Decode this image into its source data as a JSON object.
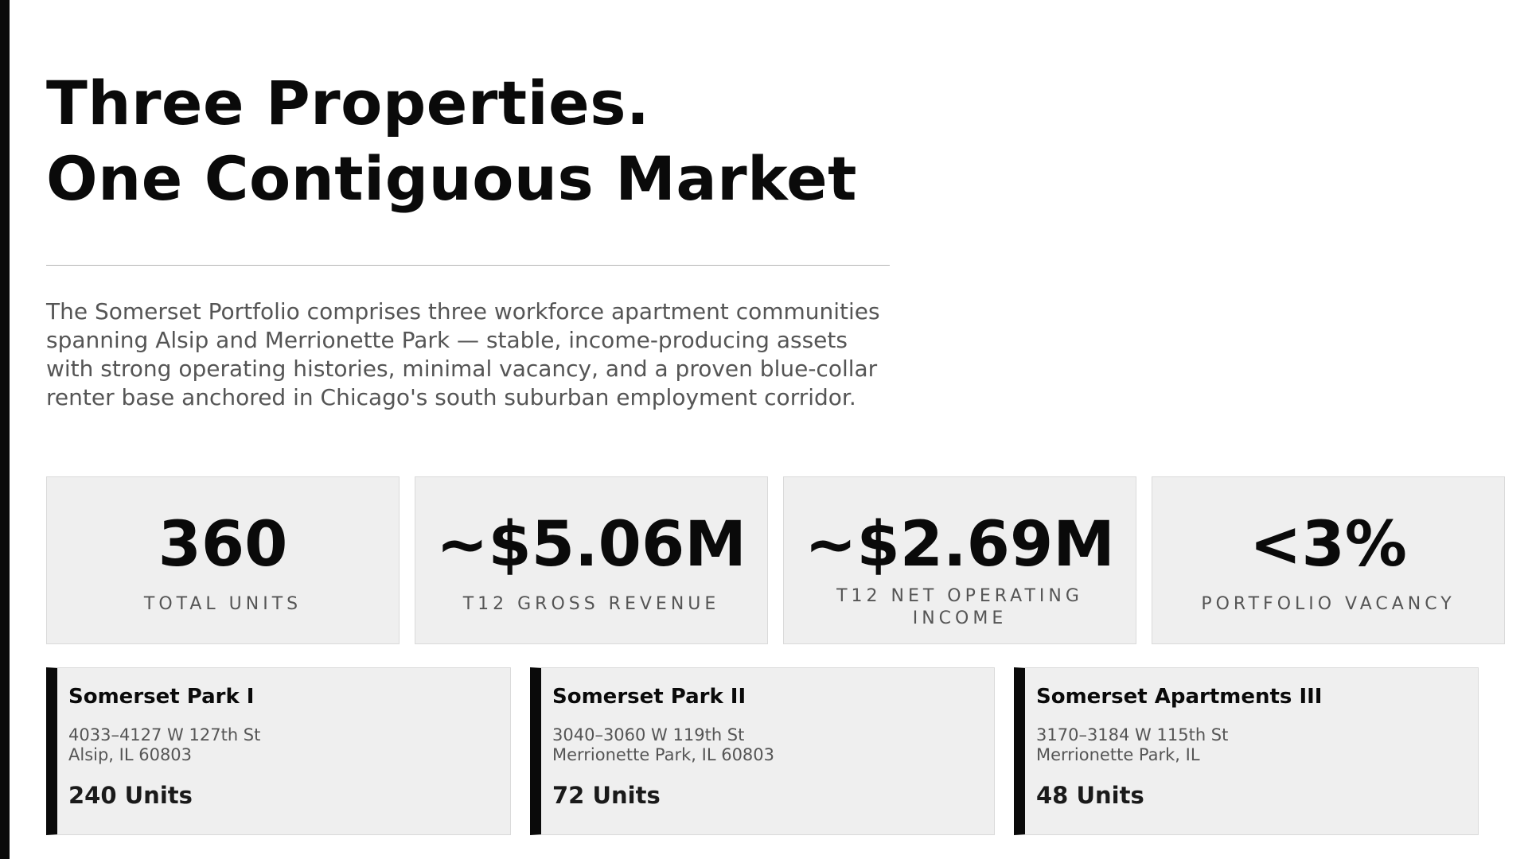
{
  "header": {
    "title_line1": "Three Properties.",
    "title_line2": "One Contiguous Market"
  },
  "intro": "The Somerset Portfolio comprises three workforce apartment communities spanning Alsip and Merrionette Park — stable, income-producing assets with strong operating histories, minimal vacancy, and a proven blue-collar renter base anchored in Chicago's south suburban employment corridor.",
  "stats": [
    {
      "value": "360",
      "label": "TOTAL UNITS"
    },
    {
      "value": "~$5.06M",
      "label": "T12 GROSS REVENUE"
    },
    {
      "value": "~$2.69M",
      "label": "T12 NET OPERATING INCOME"
    },
    {
      "value": "<3%",
      "label": "PORTFOLIO VACANCY"
    }
  ],
  "properties": [
    {
      "name": "Somerset Park I",
      "address1": "4033–4127 W 127th St",
      "address2": "Alsip, IL 60803",
      "units": "240 Units"
    },
    {
      "name": "Somerset Park II",
      "address1": "3040–3060 W 119th St",
      "address2": "Merrionette Park, IL 60803",
      "units": "72 Units"
    },
    {
      "name": "Somerset Apartments III",
      "address1": "3170–3184 W 115th St",
      "address2": "Merrionette Park, IL",
      "units": "48 Units"
    }
  ],
  "colors": {
    "accent": "#0a0a0a",
    "card_bg": "#efefef",
    "muted_text": "#555555"
  }
}
